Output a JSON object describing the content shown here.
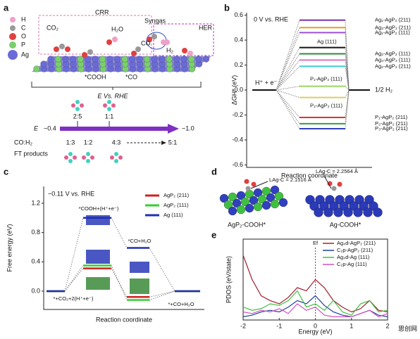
{
  "panel_labels": [
    "a",
    "b",
    "c",
    "d",
    "e"
  ],
  "panel_a": {
    "elements": [
      "H",
      "C",
      "O",
      "P",
      "Ag"
    ],
    "crr": "CRR",
    "her": "HER",
    "syngas": "Syngas",
    "co2": "CO₂",
    "h2o": "H₂O",
    "co": "CO",
    "h2": "H₂",
    "cooh_ads": "*COOH",
    "co_ads": "*CO",
    "potential_axis": "E Vs. RHE",
    "e_symbol": "E",
    "e_start": "−0.4",
    "e_end": "−1.0",
    "ratio_label": "CO:H₂",
    "ratios_above": [
      "2:5",
      "1:1"
    ],
    "ratios_below": [
      "1:3",
      "1:2",
      "4:3",
      "5:1"
    ],
    "ft_products": "FT products"
  },
  "panel_d": {
    "bond_left": "LAg-C = 2.1516 Å",
    "bond_right": "LAg-C = 2.2564 Å",
    "name_left": "AgP₂-COOH*",
    "name_right": "Ag-COOH*"
  },
  "watermark": "思创网",
  "chart_data": [
    {
      "type": "level",
      "title": "0 V vs. RHE",
      "ylabel": "ΔGH* (eV)",
      "xlabel": "Reaction coordinate",
      "start_label": "H⁺ + e⁻",
      "end_label": "1/2 H₂",
      "ylim": [
        -0.62,
        0.62
      ],
      "yticks": [
        0.6,
        0.4,
        0.2,
        {
          "value": 0,
          "label": "0.0"
        },
        -0.2,
        -0.4,
        -0.6
      ],
      "levels": [
        {
          "name": "Ag₁-AgP₂ (211)",
          "color": "#7b2fa8",
          "value": 0.56
        },
        {
          "name": "Ag₃-AgP₂ (211)",
          "color": "#e0a020",
          "value": 0.5
        },
        {
          "name": "Ag₁-AgP₂ (111)",
          "color": "#9a50d8",
          "value": 0.46
        },
        {
          "name": "Ag (111)",
          "color": "#111111",
          "value": 0.34
        },
        {
          "name": "Ag₂-AgP₂ (111)",
          "color": "#2e8b3a",
          "value": 0.29
        },
        {
          "name": "Ag₃-AgP₂ (111)",
          "color": "#e070c0",
          "value": 0.24
        },
        {
          "name": "Ag₂-AgP₂ (211)",
          "color": "#40d0d0",
          "value": 0.19
        },
        {
          "name": "P₁-AgP₂ (111)",
          "color": "#9ad860",
          "value": 0.03
        },
        {
          "name": "P₂-AgP₂ (111)",
          "color": "#d8d060",
          "value": -0.06
        },
        {
          "name": "P₁-AgP₂ (211)",
          "color": "#e03030",
          "value": -0.22
        },
        {
          "name": "P₂-AgP₂ (211)",
          "color": "#30a040",
          "value": -0.27
        },
        {
          "name": "P₃-AgP₂ (211)",
          "color": "#3040c0",
          "value": -0.31
        }
      ]
    },
    {
      "type": "energy-diagram",
      "annotation": "−0.11 V vs. RHE",
      "ylabel": "Free energy (eV)",
      "xlabel": "Reaction coordinate",
      "categories": [
        "*+CO₂+2(H⁺+e⁻)",
        "*COOH+(H⁺+e⁻)",
        "*CO+H₂O",
        "*+CO+H₂O"
      ],
      "ylim": [
        -0.25,
        1.43
      ],
      "yticks": [
        {
          "value": 0,
          "label": "0.0"
        },
        0.4,
        0.8,
        1.2
      ],
      "series": [
        {
          "name": "AgP₂ (211)",
          "color": "#d02020",
          "values": [
            0,
            0.31,
            -0.08,
            0
          ]
        },
        {
          "name": "AgP₂ (111)",
          "color": "#30d030",
          "values": [
            0,
            0.35,
            -0.12,
            0
          ]
        },
        {
          "name": "Ag (111)",
          "color": "#2030b0",
          "values": [
            0,
            1.0,
            0.59,
            0
          ]
        }
      ]
    },
    {
      "type": "line",
      "ylabel": "PDOS (eV/state)",
      "xlabel": "Energy (eV)",
      "marker_label": "Ef",
      "x": [
        -2,
        -1.75,
        -1.5,
        -1.25,
        -1,
        -0.75,
        -0.5,
        -0.25,
        0,
        0.25,
        0.5,
        0.75,
        1,
        1.25,
        1.5,
        1.75,
        2
      ],
      "xlim": [
        -2,
        2
      ],
      "xticks": [
        -2,
        -1,
        0,
        1,
        2
      ],
      "ylim": [
        0,
        0.5
      ],
      "legend": "upper right",
      "series": [
        {
          "name": "Ag₄d-AgP₂ (211)",
          "color": "#a02030",
          "values": [
            0.4,
            0.25,
            0.15,
            0.12,
            0.1,
            0.14,
            0.2,
            0.18,
            0.25,
            0.2,
            0.12,
            0.08,
            0.05,
            0.07,
            0.12,
            0.06,
            0.05
          ]
        },
        {
          "name": "C₂p-AgP₂ (211)",
          "color": "#2040a0",
          "values": [
            0.02,
            0.03,
            0.05,
            0.06,
            0.05,
            0.08,
            0.12,
            0.1,
            0.15,
            0.09,
            0.05,
            0.03,
            0.02,
            0.04,
            0.06,
            0.03,
            0.02
          ]
        },
        {
          "name": "Ag₄d-Ag (111)",
          "color": "#40c040",
          "values": [
            0.08,
            0.06,
            0.07,
            0.1,
            0.09,
            0.12,
            0.18,
            0.08,
            0.1,
            0.06,
            0.12,
            0.05,
            0.03,
            0.1,
            0.12,
            0.05,
            0.06
          ]
        },
        {
          "name": "C₂p-Ag (111)",
          "color": "#d050c0",
          "values": [
            0.05,
            0.04,
            0.06,
            0.05,
            0.07,
            0.04,
            0.1,
            0.06,
            0.08,
            0.03,
            0.02,
            0.02,
            0.02,
            0.04,
            0.06,
            0.02,
            0.04
          ]
        }
      ]
    }
  ]
}
